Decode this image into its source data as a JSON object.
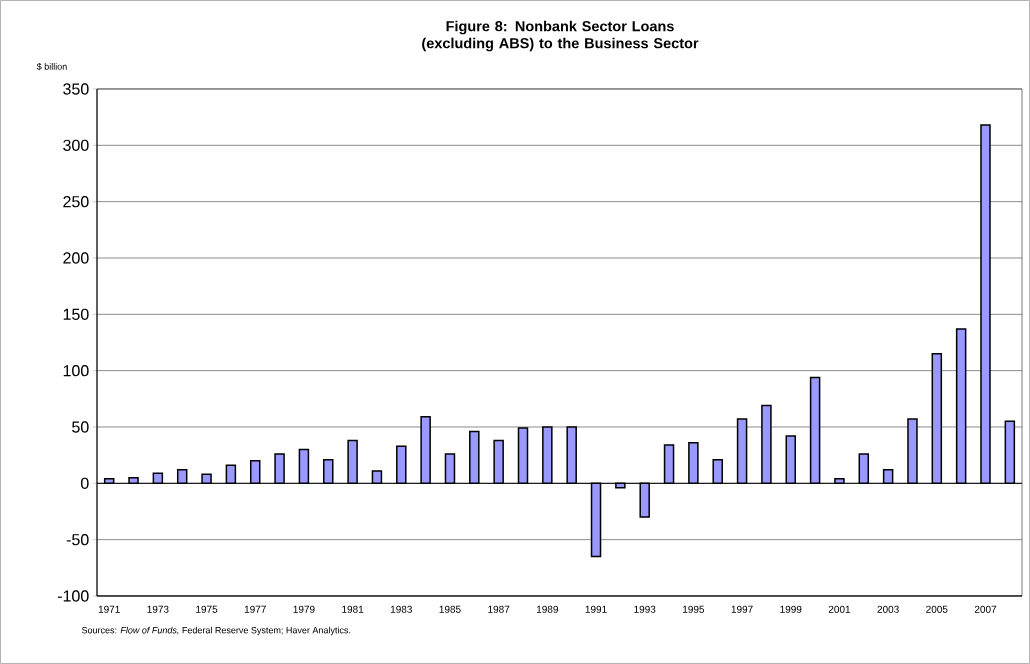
{
  "chart_data": {
    "type": "bar",
    "title": "Figure 8: Nonbank Sector Loans (excluding ABS) to the Business Sector",
    "ylabel": "$ billion",
    "annotations": [
      "Sources: *Flow of Funds,* Federal Reserve System; Haver Analytics."
    ],
    "categories": [
      "1971",
      null,
      "1973",
      null,
      "1975",
      null,
      "1977",
      null,
      "1979",
      null,
      "1981",
      null,
      "1983",
      null,
      "1985",
      null,
      "1987",
      null,
      "1989",
      null,
      "1991",
      null,
      "1993",
      null,
      "1995",
      null,
      "1997",
      null,
      "1999",
      null,
      "2001",
      null,
      "2003",
      null,
      "2005",
      null,
      "2007",
      null
    ],
    "values": [
      4,
      5,
      9,
      12,
      8,
      16,
      20,
      26,
      30,
      21,
      38,
      11,
      33,
      59,
      26,
      46,
      38,
      49,
      50,
      50,
      -65,
      -4,
      -30,
      34,
      36,
      21,
      57,
      69,
      42,
      94,
      4,
      26,
      12,
      57,
      115,
      137,
      318,
      55
    ],
    "color": "#9999ff",
    "ylim": [
      -100,
      350
    ],
    "yticks": [
      -100,
      -50,
      0,
      50,
      100,
      150,
      200,
      250,
      300,
      350
    ],
    "grid": "y"
  }
}
